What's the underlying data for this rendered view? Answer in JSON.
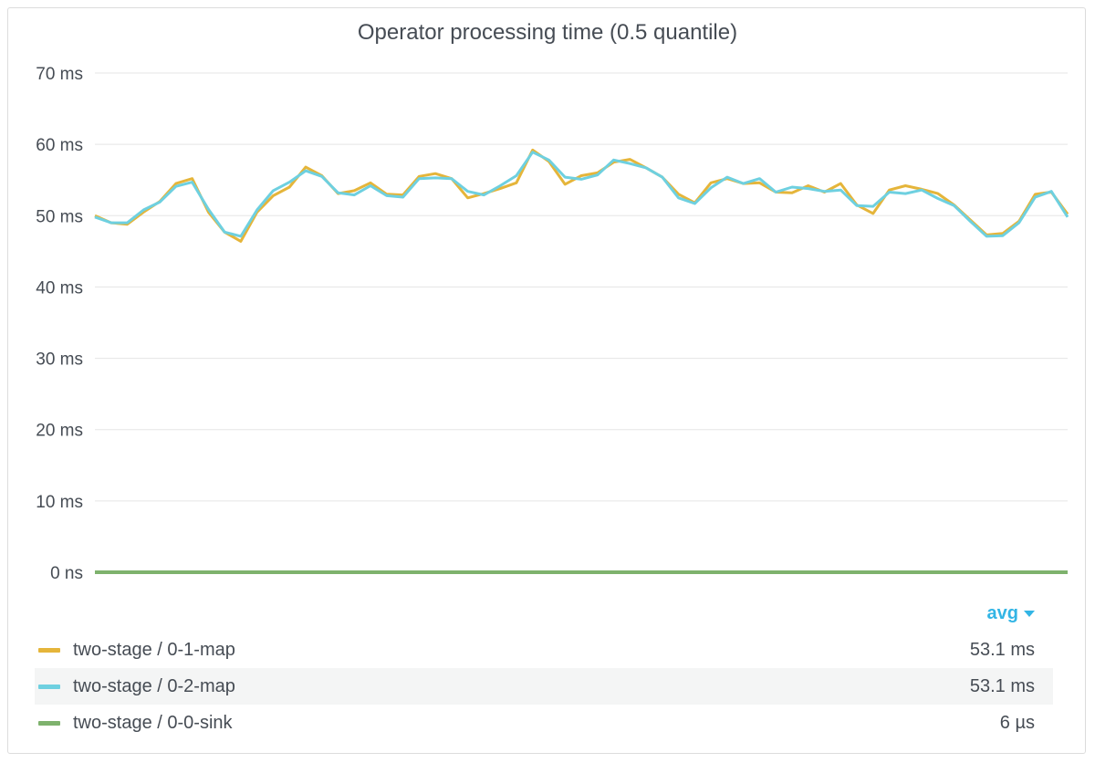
{
  "chart_data": {
    "type": "line",
    "title": "Operator processing time (0.5 quantile)",
    "y_ticks": [
      "70 ms",
      "60 ms",
      "50 ms",
      "40 ms",
      "30 ms",
      "20 ms",
      "10 ms",
      "0 ns"
    ],
    "ylim_ms": [
      0,
      70
    ],
    "grid": true,
    "series": [
      {
        "name": "two-stage / 0-1-map",
        "color": "#e5b53a",
        "avg": "53.1 ms",
        "values": [
          50.0,
          49.0,
          48.8,
          50.5,
          52.0,
          54.5,
          55.2,
          50.5,
          47.7,
          46.4,
          50.5,
          52.8,
          54.0,
          56.8,
          55.6,
          53.1,
          53.5,
          54.6,
          53.0,
          52.9,
          55.5,
          55.9,
          55.2,
          52.5,
          53.1,
          53.8,
          54.6,
          59.2,
          57.6,
          54.4,
          55.6,
          56.0,
          57.5,
          57.9,
          56.7,
          55.4,
          53.0,
          51.8,
          54.6,
          55.2,
          54.5,
          54.6,
          53.3,
          53.2,
          54.2,
          53.3,
          54.5,
          51.5,
          50.3,
          53.6,
          54.2,
          53.7,
          53.1,
          51.5,
          49.4,
          47.3,
          47.5,
          49.2,
          53.0,
          53.3,
          50.2
        ]
      },
      {
        "name": "two-stage / 0-2-map",
        "color": "#6ed0e0",
        "avg": "53.1 ms",
        "values": [
          49.8,
          49.0,
          49.0,
          50.8,
          51.9,
          54.1,
          54.7,
          50.9,
          47.7,
          47.1,
          50.8,
          53.5,
          54.7,
          56.3,
          55.5,
          53.2,
          52.9,
          54.2,
          52.8,
          52.6,
          55.2,
          55.3,
          55.2,
          53.4,
          52.9,
          54.2,
          55.6,
          58.9,
          57.8,
          55.4,
          55.1,
          55.7,
          57.8,
          57.3,
          56.7,
          55.4,
          52.5,
          51.7,
          53.9,
          55.4,
          54.5,
          55.2,
          53.3,
          54.0,
          53.8,
          53.4,
          53.6,
          51.4,
          51.3,
          53.3,
          53.1,
          53.6,
          52.4,
          51.4,
          49.2,
          47.1,
          47.2,
          49.0,
          52.6,
          53.4,
          49.8
        ]
      },
      {
        "name": "two-stage / 0-0-sink",
        "color": "#7eb26d",
        "avg": "6 µs",
        "values": [
          0.006,
          0.006
        ]
      }
    ]
  },
  "legend": {
    "header": "avg"
  }
}
